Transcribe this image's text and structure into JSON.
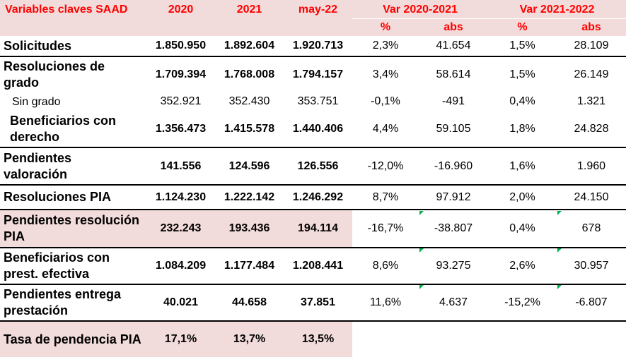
{
  "header": {
    "title": "Variables claves SAAD",
    "col2020": "2020",
    "col2021": "2021",
    "colMay": "may-22",
    "var1": "Var 2020-2021",
    "var2": "Var 2021-2022",
    "pct1": "%",
    "abs1": "abs",
    "pct2": "%",
    "abs2": "abs"
  },
  "rows": [
    {
      "label": "Solicitudes",
      "v2020": "1.850.950",
      "v2021": "1.892.604",
      "vmay": "1.920.713",
      "p1": "2,3%",
      "a1": "41.654",
      "p2": "1,5%",
      "a2": "28.109"
    },
    {
      "label": "Resoluciones de grado",
      "v2020": "1.709.394",
      "v2021": "1.768.008",
      "vmay": "1.794.157",
      "p1": "3,4%",
      "a1": "58.614",
      "p2": "1,5%",
      "a2": "26.149"
    },
    {
      "label": "Sin grado",
      "v2020": "352.921",
      "v2021": "352.430",
      "vmay": "353.751",
      "p1": "-0,1%",
      "a1": "-491",
      "p2": "0,4%",
      "a2": "1.321"
    },
    {
      "label": "Beneficiarios con derecho",
      "v2020": "1.356.473",
      "v2021": "1.415.578",
      "vmay": "1.440.406",
      "p1": "4,4%",
      "a1": "59.105",
      "p2": "1,8%",
      "a2": "24.828"
    },
    {
      "label": "Pendientes valoración",
      "v2020": "141.556",
      "v2021": "124.596",
      "vmay": "126.556",
      "p1": "-12,0%",
      "a1": "-16.960",
      "p2": "1,6%",
      "a2": "1.960"
    },
    {
      "label": "Resoluciones PIA",
      "v2020": "1.124.230",
      "v2021": "1.222.142",
      "vmay": "1.246.292",
      "p1": "8,7%",
      "a1": "97.912",
      "p2": "2,0%",
      "a2": "24.150"
    },
    {
      "label": "Pendientes resolución PIA",
      "v2020": "232.243",
      "v2021": "193.436",
      "vmay": "194.114",
      "p1": "-16,7%",
      "a1": "-38.807",
      "p2": "0,4%",
      "a2": "678"
    },
    {
      "label": "Beneficiarios con prest. efectiva",
      "v2020": "1.084.209",
      "v2021": "1.177.484",
      "vmay": "1.208.441",
      "p1": "8,6%",
      "a1": "93.275",
      "p2": "2,6%",
      "a2": "30.957"
    },
    {
      "label": "Pendientes entrega prestación",
      "v2020": "40.021",
      "v2021": "44.658",
      "vmay": "37.851",
      "p1": "11,6%",
      "a1": "4.637",
      "p2": "-15,2%",
      "a2": "-6.807"
    },
    {
      "label": "Tasa de pendencia PIA",
      "v2020": "17,1%",
      "v2021": "13,7%",
      "vmay": "13,5%"
    }
  ],
  "colors": {
    "header_text": "#ff0000",
    "highlight": "#f2dcdb",
    "comment_marker": "#00b050"
  }
}
